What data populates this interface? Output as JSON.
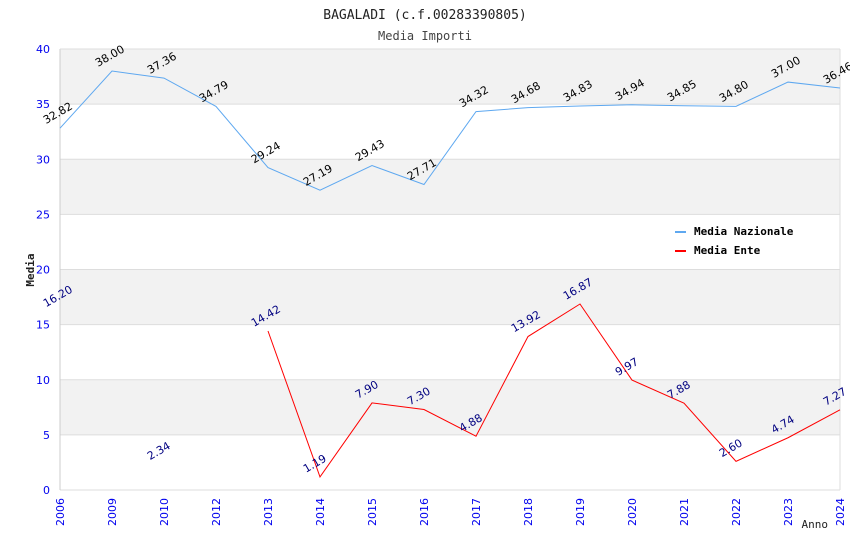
{
  "chart_data": {
    "type": "line",
    "title": "BAGALADI (c.f.00283390805)",
    "subtitle": "Media Importi",
    "xlabel": "Anno",
    "ylabel": "Media",
    "ylim": [
      0,
      40
    ],
    "yticks": [
      "0",
      "5",
      "10",
      "15",
      "20",
      "25",
      "30",
      "35",
      "40"
    ],
    "categories": [
      "2006",
      "2009",
      "2010",
      "2012",
      "2013",
      "2014",
      "2015",
      "2016",
      "2017",
      "2018",
      "2019",
      "2020",
      "2021",
      "2022",
      "2023",
      "2024"
    ],
    "legend_position": "top-right",
    "series": [
      {
        "name": "Media Nazionale",
        "color": "#5ea8f0",
        "label_color": "#000000",
        "values": [
          32.82,
          38.0,
          37.36,
          34.79,
          29.24,
          27.19,
          29.43,
          27.71,
          34.32,
          34.68,
          34.83,
          34.94,
          34.85,
          34.8,
          37.0,
          36.46
        ]
      },
      {
        "name": "Media Ente",
        "color": "#ff0000",
        "label_color": "#000080",
        "values": [
          16.2,
          null,
          2.34,
          null,
          14.42,
          1.19,
          7.9,
          7.3,
          4.88,
          13.92,
          16.87,
          9.97,
          7.88,
          2.6,
          4.74,
          7.27
        ]
      }
    ]
  }
}
